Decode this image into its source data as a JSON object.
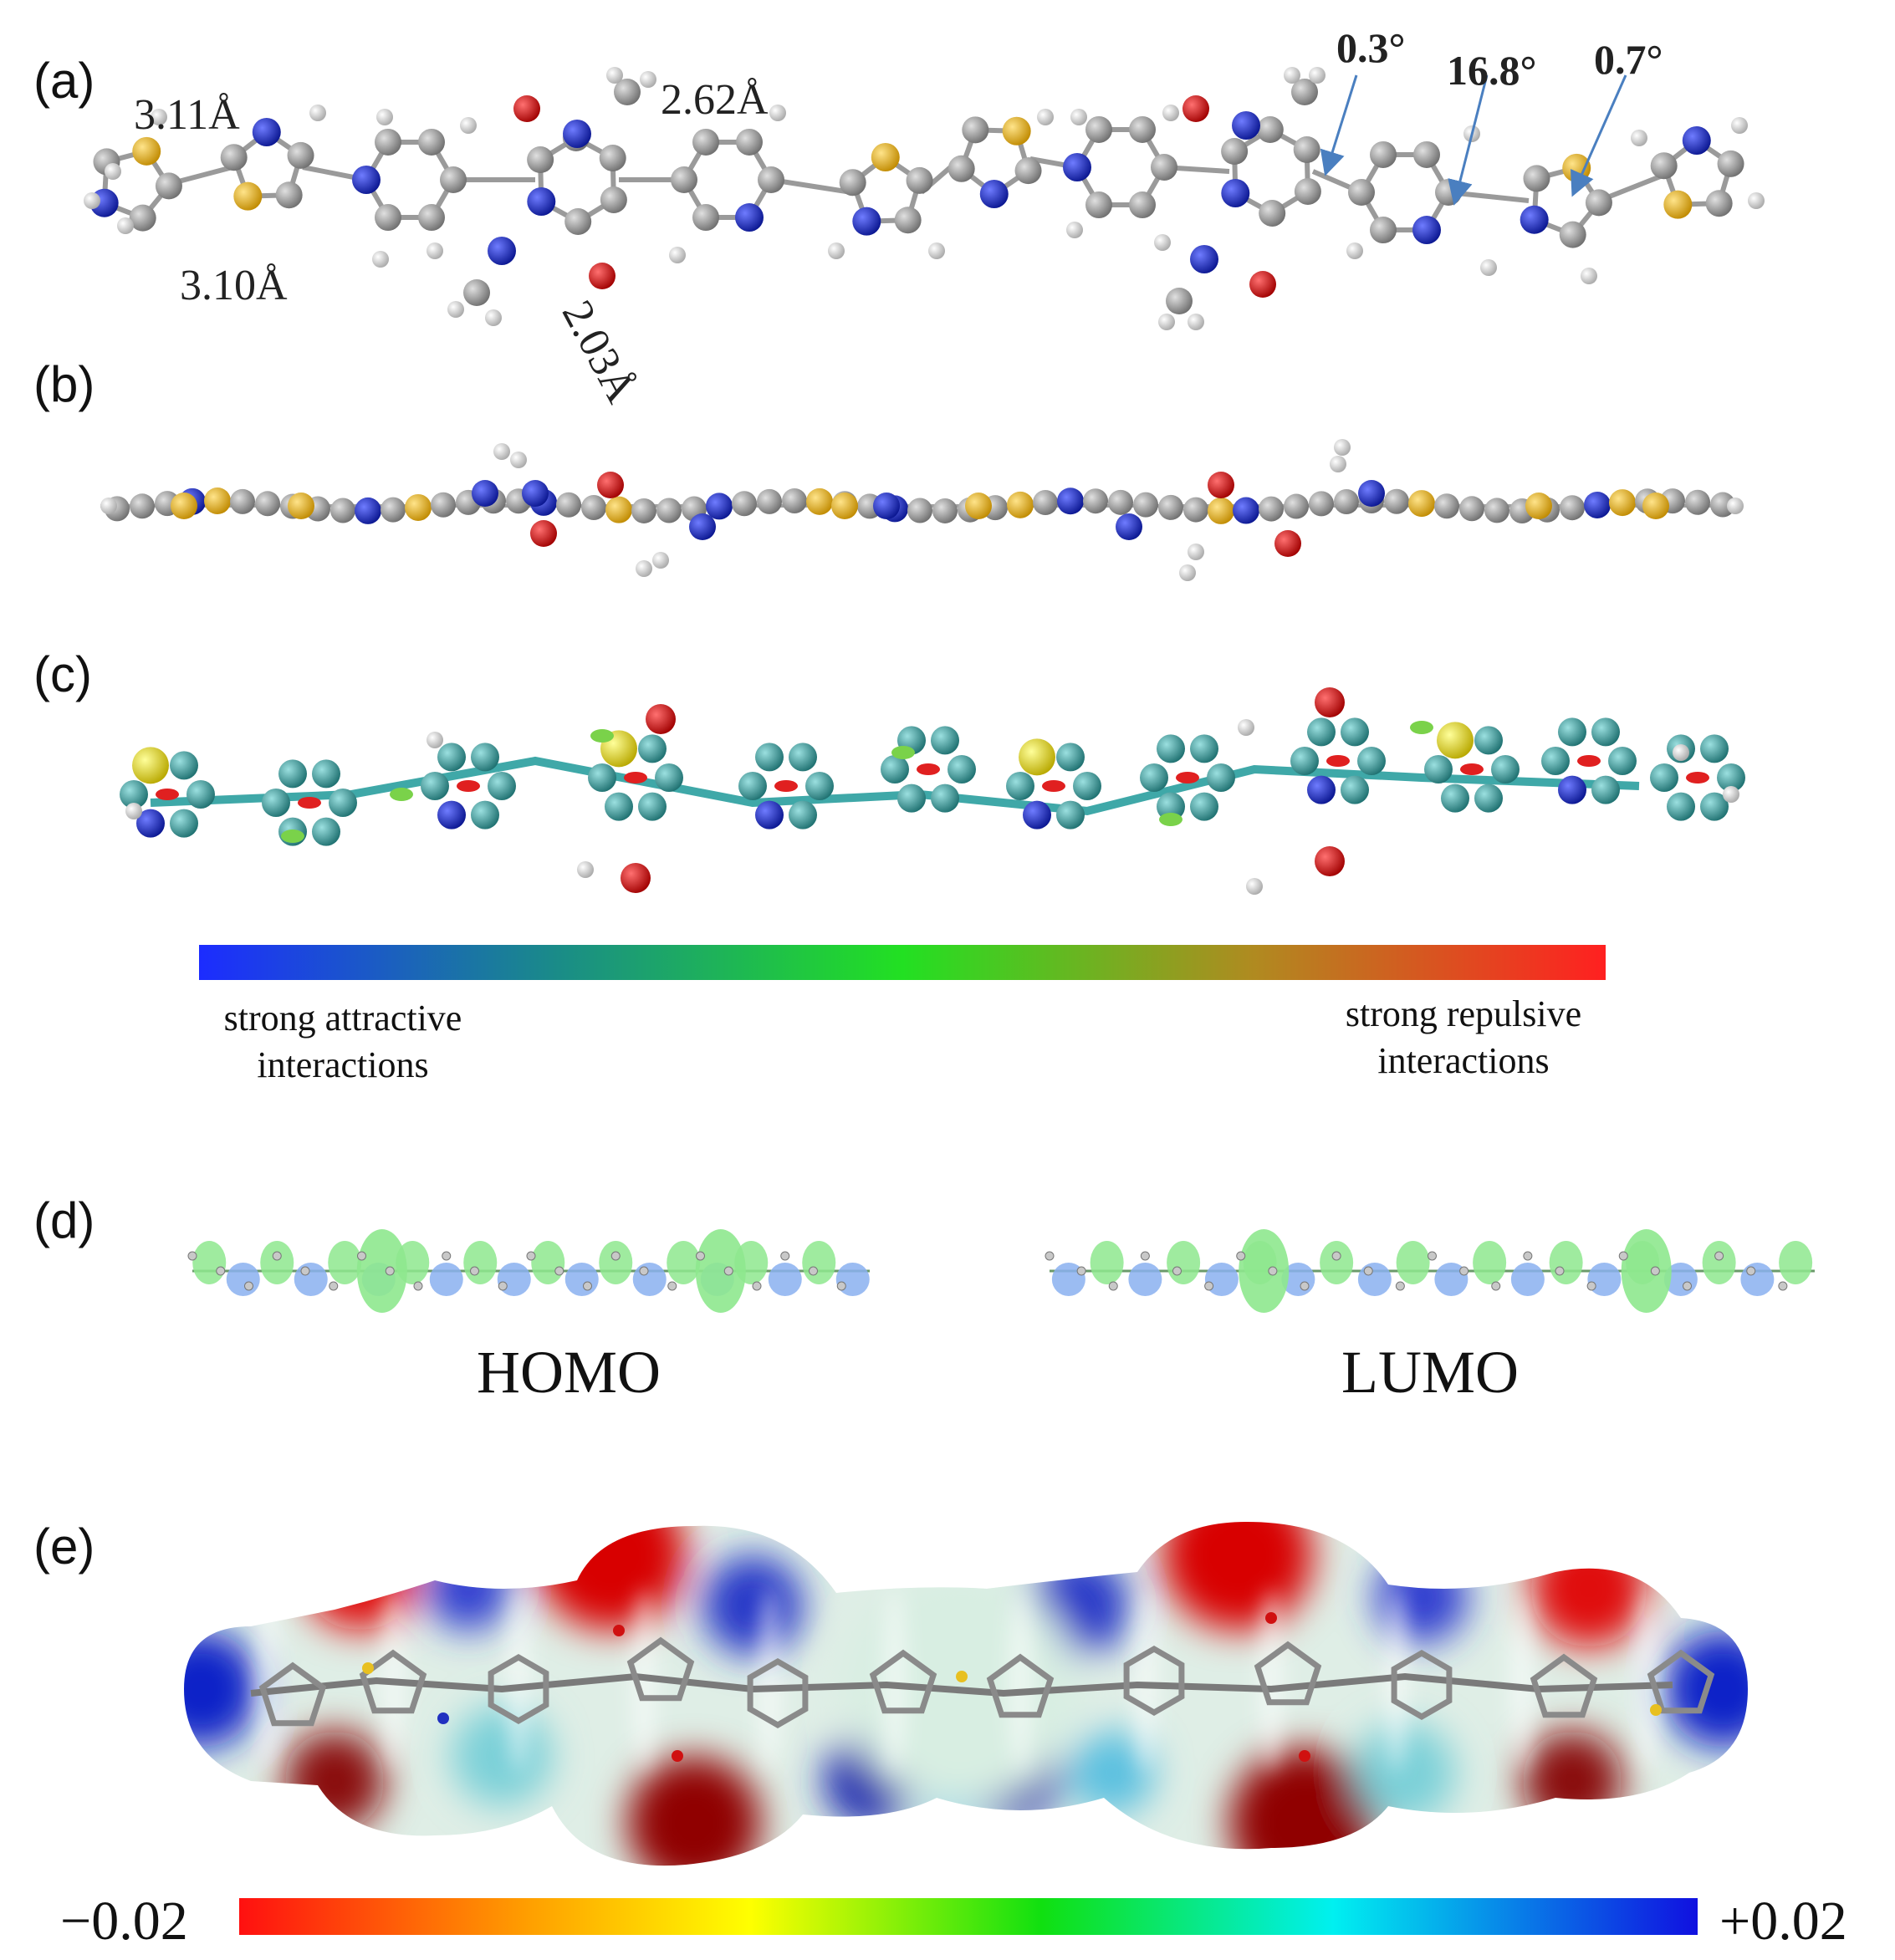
{
  "panels": {
    "a": {
      "label": "(a)",
      "distances": [
        "3.11Å",
        "3.10Å",
        "2.62Å",
        "2.03Å"
      ],
      "angles": [
        "0.3°",
        "16.8°",
        "0.7°"
      ]
    },
    "b": {
      "label": "(b)"
    },
    "c": {
      "label": "(c)",
      "scale_left": "strong attractive\ninteractions",
      "scale_right": "strong repulsive\ninteractions"
    },
    "d": {
      "label": "(d)",
      "homo": "HOMO",
      "lumo": "LUMO"
    },
    "e": {
      "label": "(e)",
      "scale_min": "−0.02",
      "scale_max": "+0.02"
    }
  },
  "colors": {
    "carbon": "#8c8c8c",
    "hydrogen": "#e6e6e6",
    "nitrogen": "#1a2ccc",
    "oxygen": "#d01010",
    "sulfur": "#e8b425",
    "carbon_c": "#2f9a9a",
    "sulfur_c": "#f0e81a",
    "arrow": "#4a7fc0",
    "homo_pos": "#8ee88e",
    "homo_neg": "#8ab0f0"
  }
}
